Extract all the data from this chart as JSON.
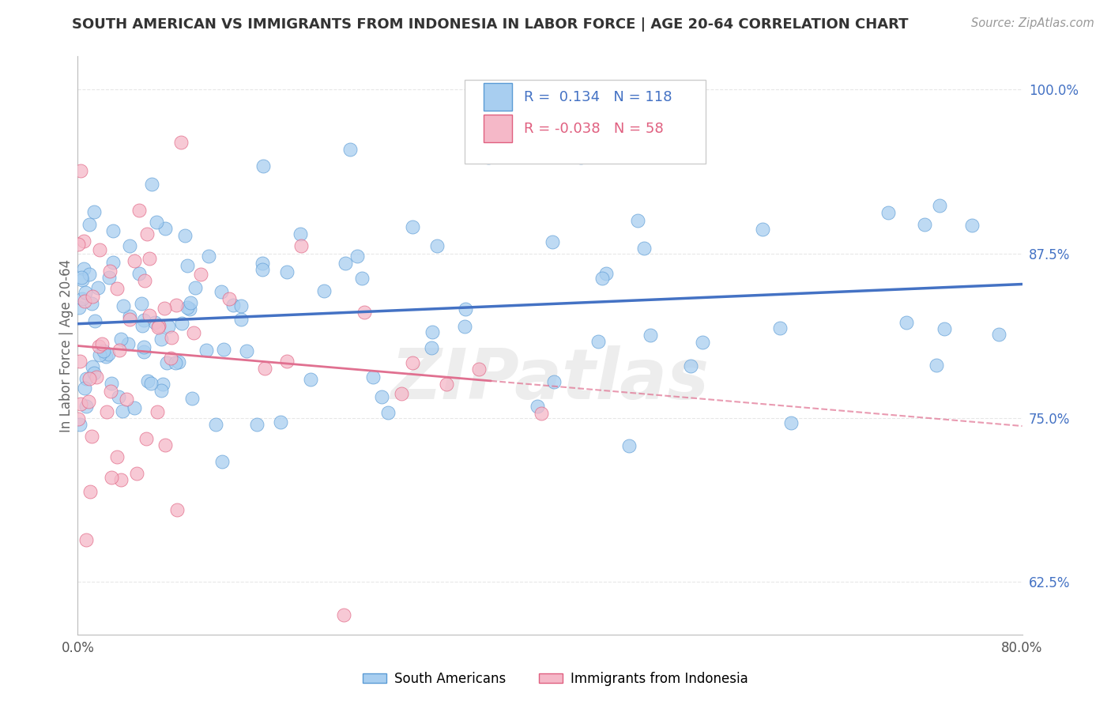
{
  "title": "SOUTH AMERICAN VS IMMIGRANTS FROM INDONESIA IN LABOR FORCE | AGE 20-64 CORRELATION CHART",
  "source": "Source: ZipAtlas.com",
  "ylabel": "In Labor Force | Age 20-64",
  "xlim": [
    0.0,
    0.8
  ],
  "ylim": [
    0.585,
    1.025
  ],
  "xticks": [
    0.0,
    0.1,
    0.2,
    0.3,
    0.4,
    0.5,
    0.6,
    0.7,
    0.8
  ],
  "xticklabels": [
    "0.0%",
    "",
    "",
    "",
    "",
    "",
    "",
    "",
    "80.0%"
  ],
  "yticks": [
    0.625,
    0.75,
    0.875,
    1.0
  ],
  "yticklabels": [
    "62.5%",
    "75.0%",
    "87.5%",
    "100.0%"
  ],
  "blue_R": 0.134,
  "blue_N": 118,
  "pink_R": -0.038,
  "pink_N": 58,
  "blue_color": "#A8CEF0",
  "pink_color": "#F5B8C8",
  "blue_edge_color": "#5B9BD5",
  "pink_edge_color": "#E06080",
  "blue_line_color": "#4472C4",
  "pink_line_color": "#E07090",
  "legend_label_blue": "South Americans",
  "legend_label_pink": "Immigrants from Indonesia",
  "watermark": "ZIPatlas",
  "bg_color": "#FFFFFF",
  "grid_color": "#DDDDDD",
  "ytick_color": "#4472C4",
  "ylabel_color": "#666666",
  "title_color": "#333333"
}
